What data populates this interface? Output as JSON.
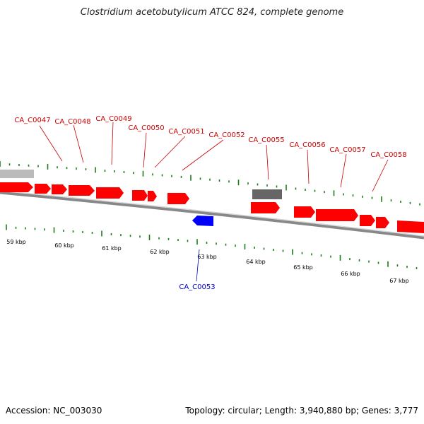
{
  "title": "Clostridium acetobutylicum ATCC 824, complete genome",
  "footer": {
    "accession": "Accession: NC_003030",
    "summary": "Topology: circular; Length: 3,940,880 bp; Genes: 3,777"
  },
  "colors": {
    "forward_gene": "#ff0000",
    "reverse_gene": "#0000ff",
    "rna_gene": "#666666",
    "other_feature": "#bbbbbb",
    "tick": "#1a7f1a",
    "backbone": "#888888"
  },
  "scale_labels": [
    "59 kbp",
    "60 kbp",
    "61 kbp",
    "62 kbp",
    "63 kbp",
    "64 kbp",
    "65 kbp",
    "66 kbp",
    "67 kbp"
  ],
  "gene_labels": [
    {
      "text": "CA_C0047",
      "strand": "forward"
    },
    {
      "text": "CA_C0048",
      "strand": "forward"
    },
    {
      "text": "CA_C0049",
      "strand": "forward"
    },
    {
      "text": "CA_C0050",
      "strand": "forward"
    },
    {
      "text": "CA_C0051",
      "strand": "forward"
    },
    {
      "text": "CA_C0052",
      "strand": "forward"
    },
    {
      "text": "CA_C0055",
      "strand": "forward"
    },
    {
      "text": "CA_C0056",
      "strand": "forward"
    },
    {
      "text": "CA_C0057",
      "strand": "forward"
    },
    {
      "text": "CA_C0058",
      "strand": "forward"
    },
    {
      "text": "CA_C0053",
      "strand": "reverse"
    }
  ]
}
